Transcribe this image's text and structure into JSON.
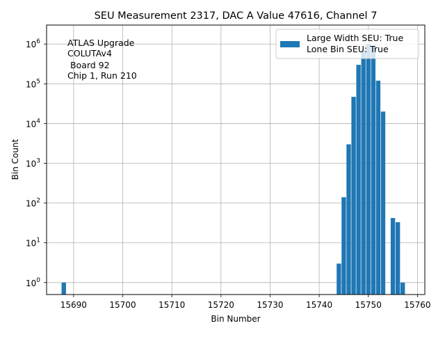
{
  "chart_data": {
    "type": "bar",
    "title": "SEU Measurement 2317, DAC A Value 47616, Channel 7",
    "xlabel": "Bin Number",
    "ylabel": "Bin Count",
    "yscale": "log",
    "xlim": [
      15684.5,
      15761.5
    ],
    "ylim": [
      0.5,
      3000000
    ],
    "grid": true,
    "bar_color": "#1f77b4",
    "x_ticks": [
      15690,
      15700,
      15710,
      15720,
      15730,
      15740,
      15750,
      15760
    ],
    "x_tick_labels": [
      "15690",
      "15700",
      "15710",
      "15720",
      "15730",
      "15740",
      "15750",
      "15760"
    ],
    "y_ticks": [
      1,
      10,
      100,
      1000,
      10000,
      100000,
      1000000
    ],
    "y_tick_labels": [
      {
        "base": "10",
        "exp": "0"
      },
      {
        "base": "10",
        "exp": "1"
      },
      {
        "base": "10",
        "exp": "2"
      },
      {
        "base": "10",
        "exp": "3"
      },
      {
        "base": "10",
        "exp": "4"
      },
      {
        "base": "10",
        "exp": "5"
      },
      {
        "base": "10",
        "exp": "6"
      }
    ],
    "x": [
      15688,
      15744,
      15745,
      15746,
      15747,
      15748,
      15749,
      15750,
      15751,
      15752,
      15753,
      15754,
      15755,
      15756,
      15757
    ],
    "values": [
      1,
      3,
      140,
      3000,
      47000,
      300000,
      700000,
      1000000,
      900000,
      120000,
      20000,
      0,
      42,
      33,
      1
    ],
    "legend": {
      "placement": "upper right",
      "entries": [
        "Large Width SEU: True",
        "Lone Bin SEU: True"
      ]
    },
    "annotation": {
      "lines": [
        "ATLAS Upgrade",
        "COLUTAv4",
        " Board 92",
        "Chip 1, Run 210"
      ]
    }
  }
}
